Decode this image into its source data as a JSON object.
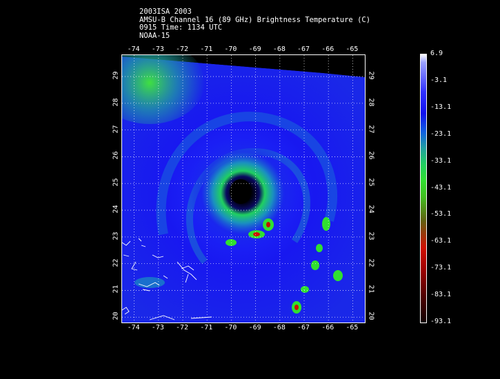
{
  "title_lines": [
    "2003ISA 2003",
    "AMSU-B Channel 16 (89 GHz) Brightness Temperature (C)",
    "0915 Time: 1134 UTC",
    "NOAA-15"
  ],
  "map": {
    "lon_ticks": [
      "-74",
      "-73",
      "-72",
      "-71",
      "-70",
      "-69",
      "-68",
      "-67",
      "-66",
      "-65"
    ],
    "lat_ticks": [
      "29",
      "28",
      "27",
      "26",
      "25",
      "24",
      "23",
      "22",
      "21",
      "20"
    ],
    "lon_range": [
      -74.5,
      -64.5
    ],
    "lat_range": [
      19.8,
      29.8
    ],
    "grid": true,
    "colors": {
      "eye": "#000000",
      "background_cold": "#1a1aff",
      "eyewall": "#30e030",
      "rain_core": "#d01000"
    }
  },
  "colorbar": {
    "labels": [
      "6.9",
      "-3.1",
      "-13.1",
      "-23.1",
      "-33.1",
      "-43.1",
      "-53.1",
      "-63.1",
      "-73.1",
      "-83.1",
      "-93.1"
    ],
    "range": [
      6.9,
      -93.1
    ]
  }
}
